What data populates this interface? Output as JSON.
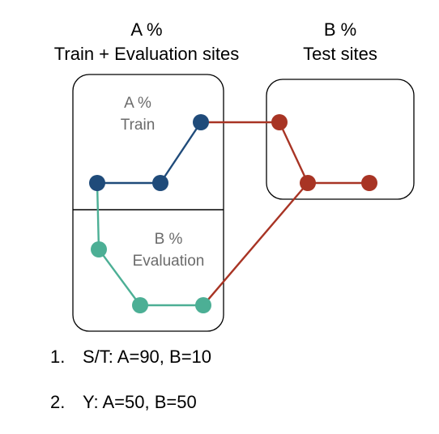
{
  "headers": {
    "left": {
      "line1": "A %",
      "line2": "Train + Evaluation sites"
    },
    "right": {
      "line1": "B %",
      "line2": "Test sites"
    }
  },
  "labels": {
    "train": {
      "line1": "A %",
      "line2": "Train"
    },
    "evaluation": {
      "line1": "B %",
      "line2": "Evaluation"
    }
  },
  "list": [
    {
      "num": "1.",
      "text": "S/T: A=90, B=10"
    },
    {
      "num": "2.",
      "text": "Y: A=50, B=50"
    }
  ],
  "colors": {
    "train": "#1f4b7a",
    "evaluation": "#4caf95",
    "test": "#a83424",
    "box": "#000000"
  }
}
